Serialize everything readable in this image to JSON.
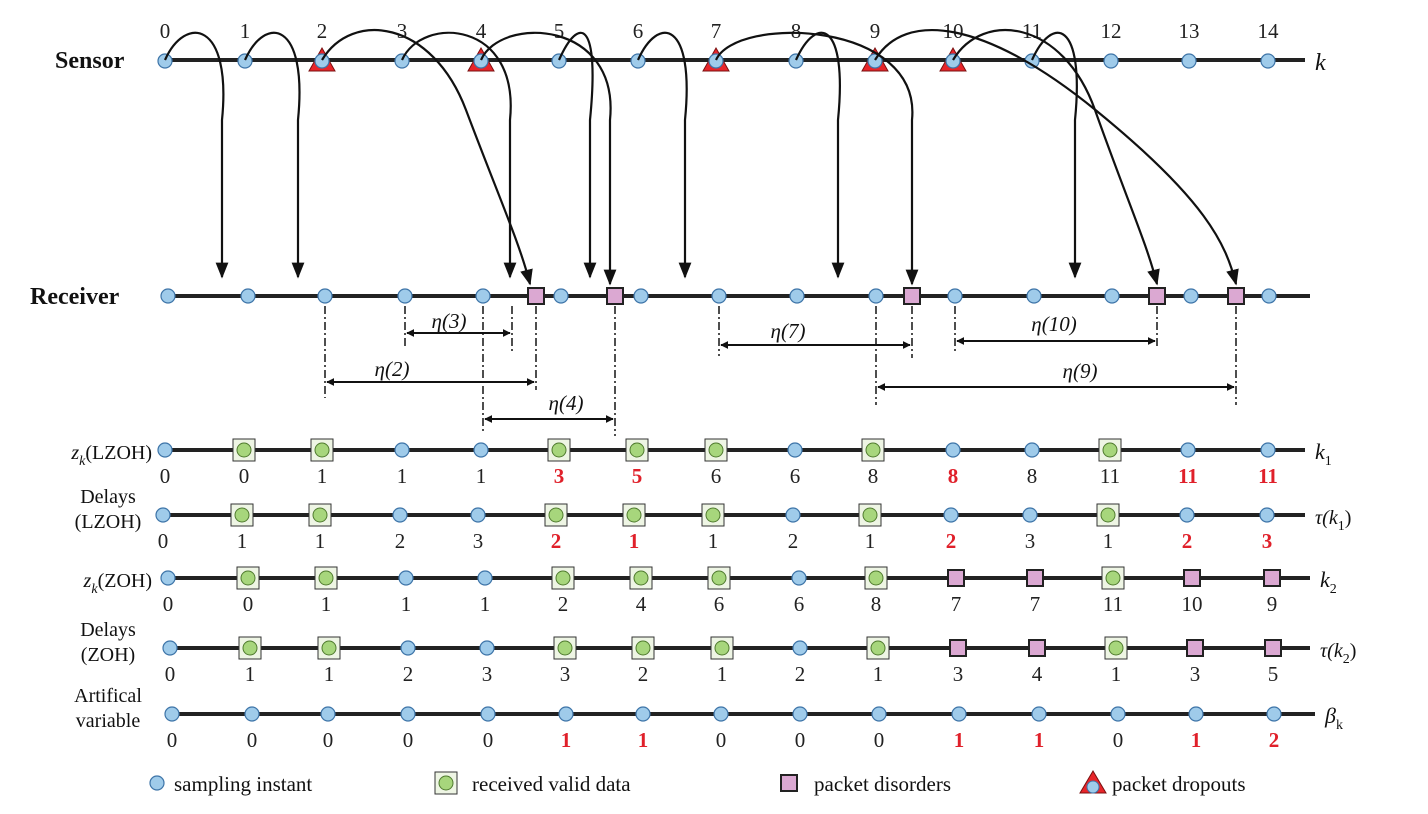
{
  "colors": {
    "sample": "#9fcbea",
    "valid_fill": "#a7d67c",
    "valid_box": "#eef5e4",
    "disorder": "#dba8d2",
    "dropout": "#e8252a",
    "highlight": "#e0202a",
    "line": "#222222"
  },
  "sensor": {
    "title": "Sensor",
    "axis": "k",
    "indices": [
      "0",
      "1",
      "2",
      "3",
      "4",
      "5",
      "6",
      "7",
      "8",
      "9",
      "10",
      "11",
      "12",
      "13",
      "14"
    ],
    "dropout_at": [
      2,
      4,
      7,
      9,
      10
    ]
  },
  "receiver": {
    "title": "Receiver"
  },
  "arrows": [
    {
      "from": 0,
      "to": "r"
    },
    {
      "from": 1,
      "to": "r"
    },
    {
      "from": 2,
      "to": "d"
    },
    {
      "from": 3,
      "to": "r"
    },
    {
      "from": 4,
      "to": "d"
    },
    {
      "from": 5,
      "to": "r"
    },
    {
      "from": 6,
      "to": "r"
    },
    {
      "from": 7,
      "to": "d"
    },
    {
      "from": 8,
      "to": "r"
    },
    {
      "from": 9,
      "to": "d"
    },
    {
      "from": 10,
      "to": "d"
    },
    {
      "from": 11,
      "to": "r"
    }
  ],
  "intervals": [
    {
      "label": "η(3)"
    },
    {
      "label": "η(2)"
    },
    {
      "label": "η(4)"
    },
    {
      "label": "η(7)"
    },
    {
      "label": "η(10)"
    },
    {
      "label": "η(9)"
    }
  ],
  "rows": [
    {
      "label": [
        "z_k(LZOH)"
      ],
      "label_main": "z",
      "label_sub": "k",
      "label_rest": "(LZOH)",
      "axis_main": "k",
      "axis_sub": "1",
      "markers": [
        "c",
        "v",
        "v",
        "c",
        "c",
        "v",
        "v",
        "v",
        "c",
        "v",
        "c",
        "c",
        "v",
        "c",
        "c"
      ],
      "values": [
        "0",
        "0",
        "1",
        "1",
        "1",
        "3",
        "5",
        "6",
        "6",
        "8",
        "8",
        "8",
        "11",
        "11",
        "11"
      ],
      "highlight": [
        false,
        false,
        false,
        false,
        false,
        true,
        true,
        false,
        false,
        false,
        true,
        false,
        false,
        true,
        true
      ]
    },
    {
      "label_lines": [
        "Delays",
        "(LZOH)"
      ],
      "axis_text": "τ(k",
      "axis_sub": "1",
      "axis_close": ")",
      "markers": [
        "c",
        "v",
        "v",
        "c",
        "c",
        "v",
        "v",
        "v",
        "c",
        "v",
        "c",
        "c",
        "v",
        "c",
        "c"
      ],
      "values": [
        "0",
        "1",
        "1",
        "2",
        "3",
        "2",
        "1",
        "1",
        "2",
        "1",
        "2",
        "3",
        "1",
        "2",
        "3"
      ],
      "highlight": [
        false,
        false,
        false,
        false,
        false,
        true,
        true,
        false,
        false,
        false,
        true,
        false,
        false,
        true,
        true
      ]
    },
    {
      "label_main": "z",
      "label_sub": "k",
      "label_rest": "(ZOH)",
      "axis_main": "k",
      "axis_sub": "2",
      "markers": [
        "c",
        "v",
        "v",
        "c",
        "c",
        "v",
        "v",
        "v",
        "c",
        "v",
        "d",
        "d",
        "v",
        "d",
        "d"
      ],
      "values": [
        "0",
        "0",
        "1",
        "1",
        "1",
        "2",
        "4",
        "6",
        "6",
        "8",
        "7",
        "7",
        "11",
        "10",
        "9"
      ],
      "highlight": [
        false,
        false,
        false,
        false,
        false,
        false,
        false,
        false,
        false,
        false,
        false,
        false,
        false,
        false,
        false
      ]
    },
    {
      "label_lines": [
        "Delays",
        "(ZOH)"
      ],
      "axis_text": "τ(k",
      "axis_sub": "2",
      "axis_close": ")",
      "markers": [
        "c",
        "v",
        "v",
        "c",
        "c",
        "v",
        "v",
        "v",
        "c",
        "v",
        "d",
        "d",
        "v",
        "d",
        "d"
      ],
      "values": [
        "0",
        "1",
        "1",
        "2",
        "3",
        "3",
        "2",
        "1",
        "2",
        "1",
        "3",
        "4",
        "1",
        "3",
        "5"
      ],
      "highlight": [
        false,
        false,
        false,
        false,
        false,
        false,
        false,
        false,
        false,
        false,
        false,
        false,
        false,
        false,
        false
      ]
    },
    {
      "label_lines": [
        "Artifical",
        "variable"
      ],
      "axis_main": "β",
      "axis_sub": "k",
      "markers": [
        "c",
        "c",
        "c",
        "c",
        "c",
        "c",
        "c",
        "c",
        "c",
        "c",
        "c",
        "c",
        "c",
        "c",
        "c"
      ],
      "values": [
        "0",
        "0",
        "0",
        "0",
        "0",
        "1",
        "1",
        "0",
        "0",
        "0",
        "1",
        "1",
        "0",
        "1",
        "2"
      ],
      "highlight": [
        false,
        false,
        false,
        false,
        false,
        true,
        true,
        false,
        false,
        false,
        true,
        true,
        false,
        true,
        true
      ]
    }
  ],
  "legend": {
    "sample": "sampling instant",
    "valid": "received valid data",
    "disorder": "packet disorders",
    "dropout": "packet dropouts"
  }
}
